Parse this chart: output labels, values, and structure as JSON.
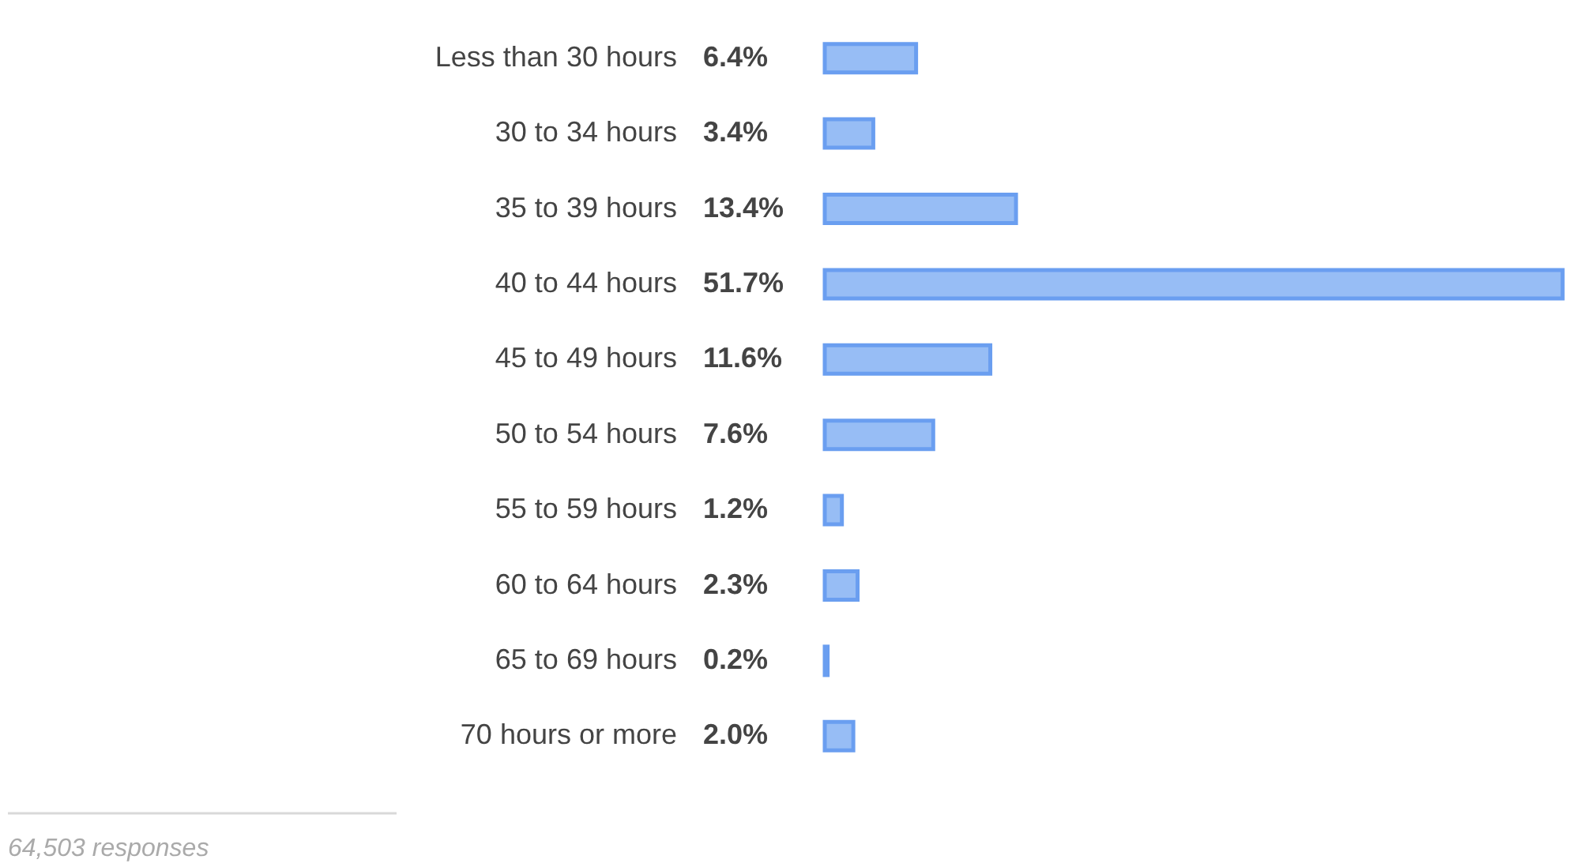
{
  "chart_data": {
    "type": "bar",
    "orientation": "horizontal",
    "categories": [
      "Less than 30 hours",
      "30 to 34 hours",
      "35 to 39 hours",
      "40 to 44 hours",
      "45 to 49 hours",
      "50 to 54 hours",
      "55 to 59 hours",
      "60 to 64 hours",
      "65 to 69 hours",
      "70 hours or more"
    ],
    "values": [
      6.4,
      3.4,
      13.4,
      51.7,
      11.6,
      7.6,
      1.2,
      2.3,
      0.2,
      2.0
    ],
    "value_labels": [
      "6.4%",
      "3.4%",
      "13.4%",
      "51.7%",
      "11.6%",
      "7.6%",
      "1.2%",
      "2.3%",
      "0.2%",
      "2.0%"
    ],
    "color": "#97bdf5",
    "annotations": [
      "64,503 responses"
    ]
  }
}
